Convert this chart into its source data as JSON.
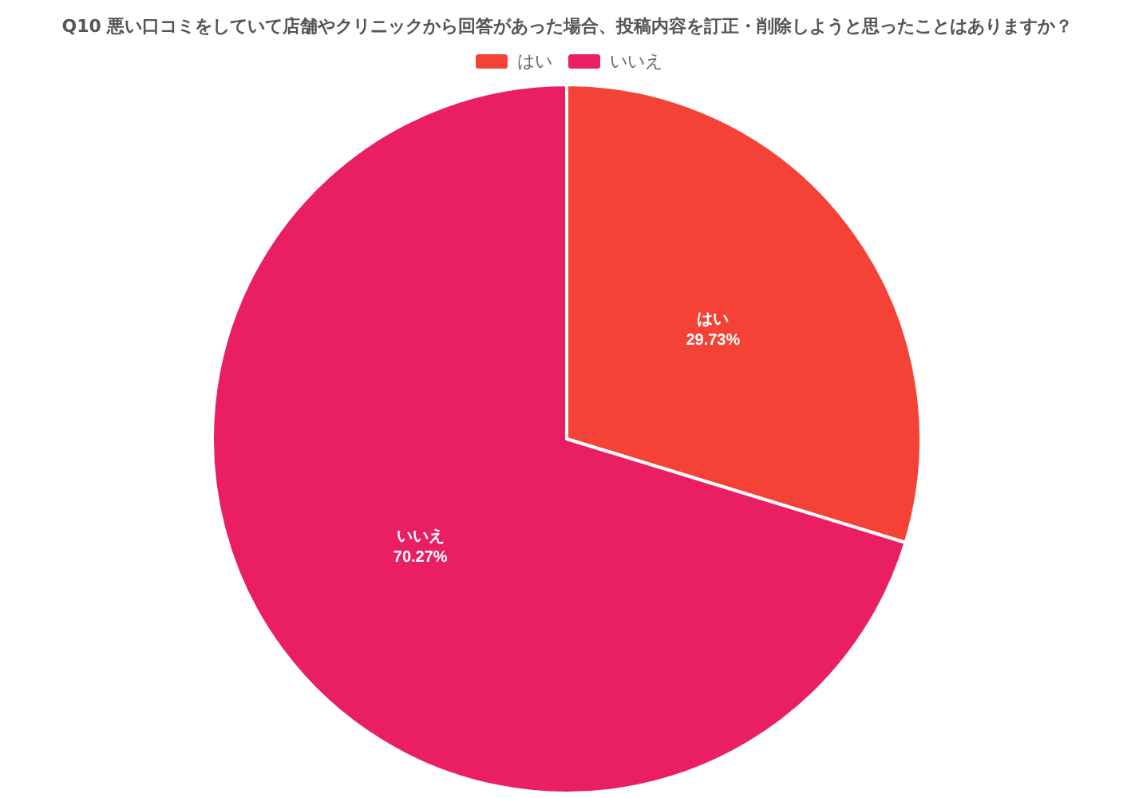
{
  "chart_data": {
    "type": "pie",
    "title": "Q10 悪い口コミをしていて店舗やクリニックから回答があった場合、投稿内容を訂正・削除しようと思ったことはありますか？",
    "categories": [
      "はい",
      "いいえ"
    ],
    "values": [
      29.73,
      70.27
    ],
    "colors": [
      "#f44336",
      "#e91e63"
    ],
    "value_labels": [
      "29.73%",
      "70.27%"
    ],
    "legend": "top"
  }
}
